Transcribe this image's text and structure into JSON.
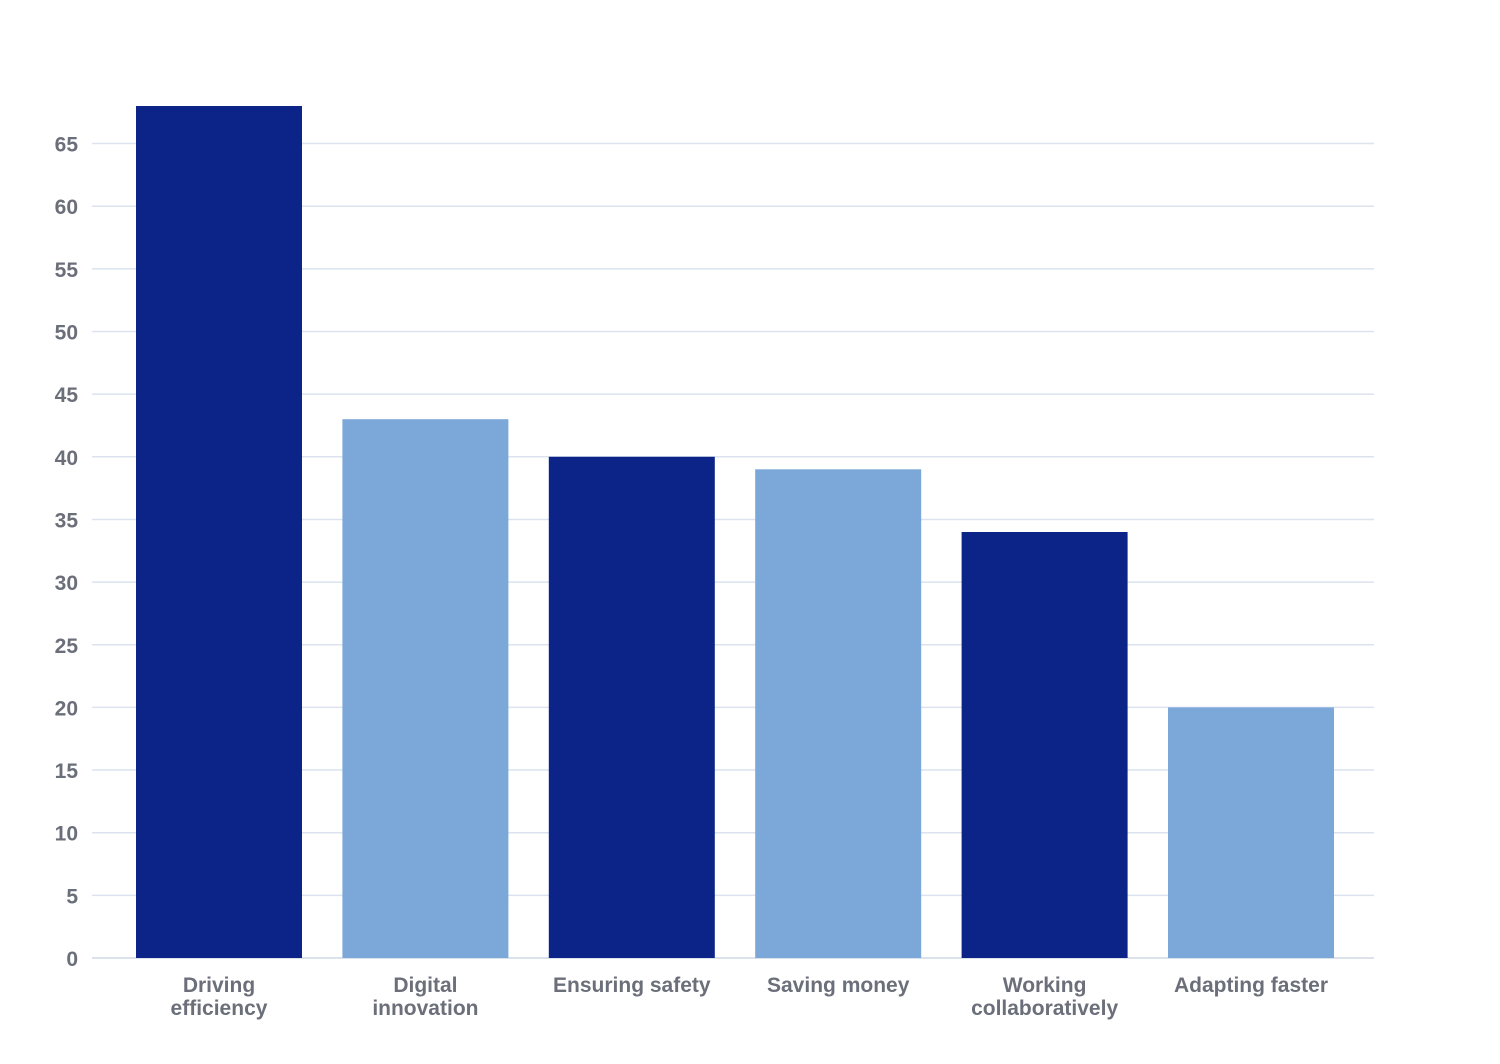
{
  "chart_data": {
    "type": "bar",
    "title": "",
    "xlabel": "",
    "ylabel": "",
    "categories": [
      [
        "Driving",
        "efficiency"
      ],
      [
        "Digital",
        "innovation"
      ],
      [
        "Ensuring safety"
      ],
      [
        "Saving money"
      ],
      [
        "Working",
        "collaboratively"
      ],
      [
        "Adapting faster"
      ]
    ],
    "values": [
      68,
      43,
      40,
      39,
      34,
      20
    ],
    "bar_colors": [
      "#0c2387",
      "#7ba7d9",
      "#0c2387",
      "#7ba7d9",
      "#0c2387",
      "#7ba7d9"
    ],
    "ylim": [
      0,
      68
    ],
    "yticks": [
      0,
      5,
      10,
      15,
      20,
      25,
      30,
      35,
      40,
      45,
      50,
      55,
      60,
      65
    ],
    "grid": true,
    "legend": "none"
  }
}
